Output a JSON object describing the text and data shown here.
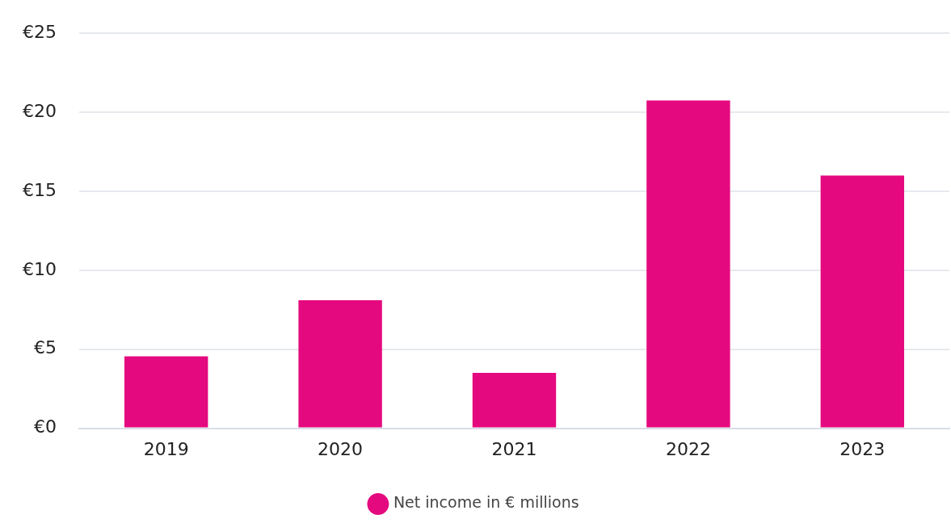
{
  "chart_data": {
    "type": "bar",
    "categories": [
      "2019",
      "2020",
      "2021",
      "2022",
      "2023"
    ],
    "series": [
      {
        "name": "Net income in € millions",
        "color": "#e5097f",
        "values": [
          4.55,
          8.1,
          3.5,
          20.75,
          16
        ]
      }
    ],
    "ylim": [
      0,
      25
    ],
    "yticks": [
      {
        "value": 0,
        "label": "€0"
      },
      {
        "value": 5,
        "label": "€5"
      },
      {
        "value": 10,
        "label": "€10"
      },
      {
        "value": 15,
        "label": "€15"
      },
      {
        "value": 20,
        "label": "€20"
      },
      {
        "value": 25,
        "label": "€25"
      }
    ],
    "grid": "y",
    "legend": "bottom"
  }
}
